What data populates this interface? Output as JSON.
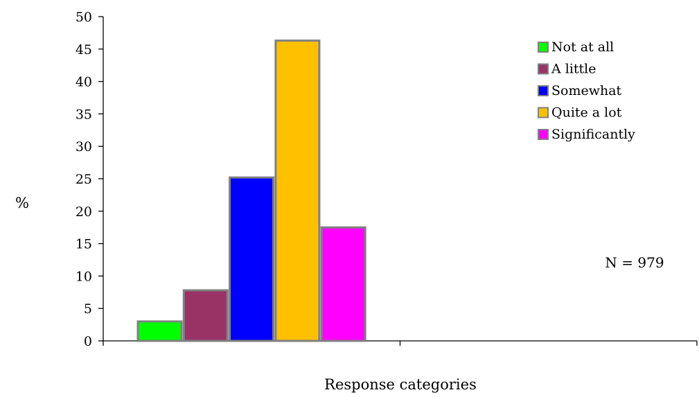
{
  "chart_data": {
    "type": "bar",
    "title": "",
    "xlabel": "Response categories",
    "ylabel": "%",
    "ylim": [
      0,
      50
    ],
    "yticks": [
      0,
      5,
      10,
      15,
      20,
      25,
      30,
      35,
      40,
      45,
      50
    ],
    "grid": false,
    "legend_position": "top-right",
    "annotation": "N = 979",
    "series": [
      {
        "name": "Not at all",
        "value": 3.0,
        "color": "#00ff00"
      },
      {
        "name": "A little",
        "value": 7.8,
        "color": "#993366"
      },
      {
        "name": "Somewhat",
        "value": 25.2,
        "color": "#0000ff"
      },
      {
        "name": "Quite a lot",
        "value": 46.3,
        "color": "#ffc000"
      },
      {
        "name": "Significantly",
        "value": 17.5,
        "color": "#ff00ff"
      }
    ],
    "bar_outline_color": "#808080"
  }
}
